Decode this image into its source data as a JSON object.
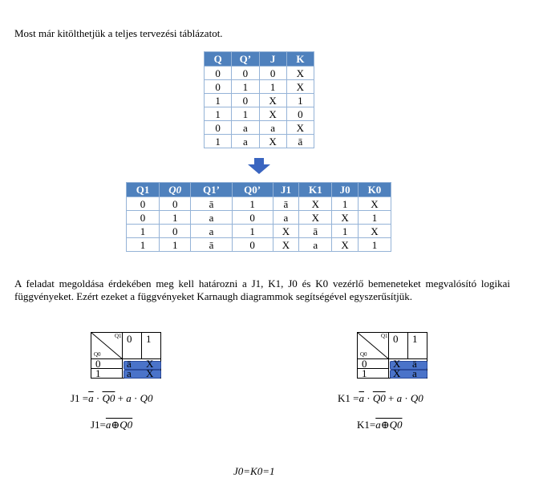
{
  "intro": "Most már kitölthetjük a teljes tervezési táblázatot.",
  "table1": {
    "headers": [
      "Q",
      "Q’",
      "J",
      "K"
    ],
    "rows": [
      [
        "0",
        "0",
        "0",
        "X"
      ],
      [
        "0",
        "1",
        "1",
        "X"
      ],
      [
        "1",
        "0",
        "X",
        "1"
      ],
      [
        "1",
        "1",
        "X",
        "0"
      ],
      [
        "0",
        "a",
        "a",
        "X"
      ],
      [
        "1",
        "a",
        "X",
        "ā"
      ]
    ]
  },
  "arrow_icon": "down-arrow-icon",
  "table2": {
    "headers": [
      "Q1",
      "Q0",
      "Q1’",
      "Q0’",
      "J1",
      "K1",
      "J0",
      "K0"
    ],
    "rows": [
      [
        "0",
        "0",
        "ā",
        "1",
        "ā",
        "X",
        "1",
        "X"
      ],
      [
        "0",
        "1",
        "a",
        "0",
        "a",
        "X",
        "X",
        "1"
      ],
      [
        "1",
        "0",
        "a",
        "1",
        "X",
        "ā",
        "1",
        "X"
      ],
      [
        "1",
        "1",
        "ā",
        "0",
        "X",
        "a",
        "X",
        "1"
      ]
    ]
  },
  "paragraph": "A feladat megoldása érdekében meg kell határozni a J1, K1, J0 és K0 vezérlő bemeneteket megvalósító logikai függvényeket. Ezért ezeket a függvényeket Karnaugh diagrammok segítségével egyszerűsítjük.",
  "kmap_j1": {
    "q1_label": "Q1",
    "q0_label": "Q0",
    "col_headers": [
      "0",
      "1"
    ],
    "row_headers": [
      "0",
      "1"
    ],
    "cells": [
      [
        "ā",
        "X"
      ],
      [
        "a",
        "X"
      ]
    ]
  },
  "kmap_k1": {
    "q1_label": "Q1",
    "q0_label": "Q0",
    "col_headers": [
      "0",
      "1"
    ],
    "row_headers": [
      "0",
      "1"
    ],
    "cells": [
      [
        "X",
        "ā"
      ],
      [
        "X",
        "a"
      ]
    ]
  },
  "formulas": {
    "j1_prefix": "J1 =",
    "j1_expr": {
      "a_bar": "a",
      "dot1": " · ",
      "q0_bar": "Q0",
      "plus": " + ",
      "a": "a",
      "dot2": " · ",
      "q0": "Q0"
    },
    "j1_simplified_prefix": "J1=",
    "j1_simplified": "a⊕Q0",
    "k1_prefix": "K1 =",
    "k1_simplified_prefix": "K1=",
    "k1_simplified": "a⊕Q0",
    "j0k0": "J0=K0=1"
  }
}
